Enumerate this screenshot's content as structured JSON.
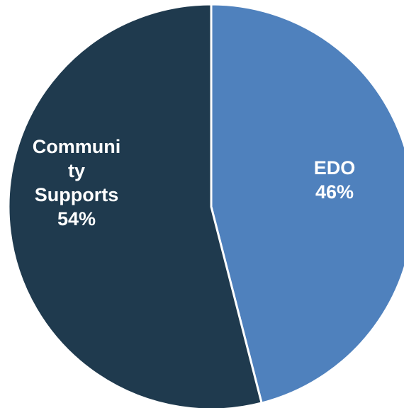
{
  "chart_data": {
    "type": "pie",
    "title": "",
    "slices": [
      {
        "label_lines": [
          "EDO",
          "46%"
        ],
        "category": "EDO",
        "value": 46,
        "color": "#4f81bd"
      },
      {
        "label_lines": [
          "Communi",
          "ty",
          "Supports",
          "54%"
        ],
        "category": "Community Supports",
        "value": 54,
        "color": "#1f3a4e"
      }
    ],
    "legend": "none"
  }
}
